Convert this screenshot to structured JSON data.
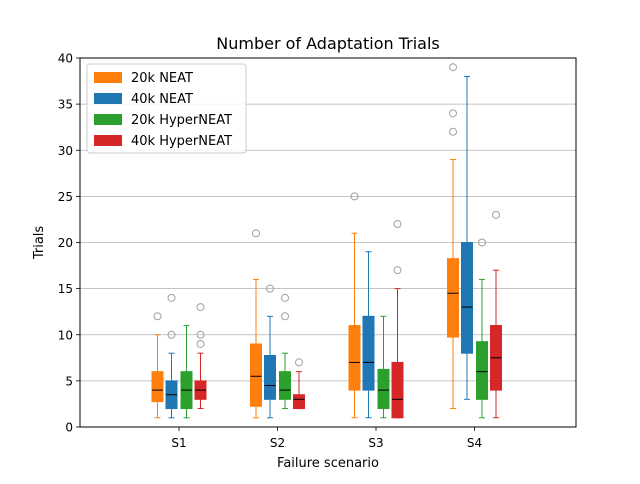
{
  "chart_data": {
    "type": "boxplot",
    "title": "Number of Adaptation Trials",
    "xlabel": "Failure scenario",
    "ylabel": "Trials",
    "ylim": [
      0,
      40
    ],
    "yticks": [
      0,
      5,
      10,
      15,
      20,
      25,
      30,
      35,
      40
    ],
    "grid": "horizontal",
    "legend_position": "top-left",
    "categories": [
      "S1",
      "S2",
      "S3",
      "S4"
    ],
    "series": [
      {
        "name": "20k NEAT",
        "color": "#ff7f0e",
        "boxes": [
          {
            "whislo": 1,
            "q1": 2.75,
            "med": 4,
            "q3": 6,
            "whishi": 10,
            "fliers": [
              12
            ]
          },
          {
            "whislo": 1,
            "q1": 2.25,
            "med": 5.5,
            "q3": 9,
            "whishi": 16,
            "fliers": [
              21
            ]
          },
          {
            "whislo": 1,
            "q1": 4,
            "med": 7,
            "q3": 11,
            "whishi": 21,
            "fliers": [
              25
            ]
          },
          {
            "whislo": 2,
            "q1": 9.75,
            "med": 14.5,
            "q3": 18.25,
            "whishi": 29,
            "fliers": [
              32,
              34,
              39
            ]
          }
        ]
      },
      {
        "name": "40k NEAT",
        "color": "#1f77b4",
        "boxes": [
          {
            "whislo": 1,
            "q1": 2,
            "med": 3.5,
            "q3": 5,
            "whishi": 8,
            "fliers": [
              10,
              14
            ]
          },
          {
            "whislo": 1,
            "q1": 3,
            "med": 4.5,
            "q3": 7.75,
            "whishi": 12,
            "fliers": [
              15
            ]
          },
          {
            "whislo": 1,
            "q1": 4,
            "med": 7,
            "q3": 12,
            "whishi": 19,
            "fliers": []
          },
          {
            "whislo": 3,
            "q1": 8,
            "med": 13,
            "q3": 20,
            "whishi": 38,
            "fliers": []
          }
        ]
      },
      {
        "name": "20k HyperNEAT",
        "color": "#2ca02c",
        "boxes": [
          {
            "whislo": 1,
            "q1": 2,
            "med": 4,
            "q3": 6,
            "whishi": 11,
            "fliers": []
          },
          {
            "whislo": 2,
            "q1": 3,
            "med": 4,
            "q3": 6,
            "whishi": 8,
            "fliers": [
              12,
              14
            ]
          },
          {
            "whislo": 1,
            "q1": 2,
            "med": 4,
            "q3": 6.25,
            "whishi": 12,
            "fliers": []
          },
          {
            "whislo": 1,
            "q1": 3,
            "med": 6,
            "q3": 9.25,
            "whishi": 16,
            "fliers": [
              20
            ]
          }
        ]
      },
      {
        "name": "40k HyperNEAT",
        "color": "#d62728",
        "boxes": [
          {
            "whislo": 2,
            "q1": 3,
            "med": 4,
            "q3": 5,
            "whishi": 8,
            "fliers": [
              9,
              10,
              13
            ]
          },
          {
            "whislo": 2,
            "q1": 2,
            "med": 3,
            "q3": 3.5,
            "whishi": 6,
            "fliers": [
              7
            ]
          },
          {
            "whislo": 1,
            "q1": 1,
            "med": 3,
            "q3": 7,
            "whishi": 15,
            "fliers": [
              17,
              22
            ]
          },
          {
            "whislo": 1,
            "q1": 4,
            "med": 7.5,
            "q3": 11,
            "whishi": 17,
            "fliers": [
              23
            ]
          }
        ]
      }
    ]
  }
}
